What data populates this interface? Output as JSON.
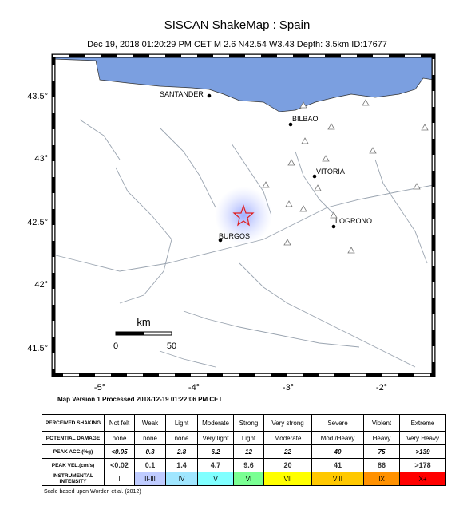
{
  "header": {
    "title": "SISCAN ShakeMap : Spain",
    "subtitle": "Dec 19, 2018 01:20:29 PM CET   M 2.6   N42.54 W3.43   Depth: 3.5km   ID:17677"
  },
  "map": {
    "lat_labels": [
      "43.5°",
      "43°",
      "42.5°",
      "42°",
      "41.5°"
    ],
    "lon_labels": [
      "-5°",
      "-4°",
      "-3°",
      "-2°"
    ],
    "cities": [
      "SANTANDER",
      "BILBAO",
      "VITORIA",
      "LOGRONO",
      "BURGOS"
    ],
    "scale": {
      "unit": "km",
      "start": "0",
      "end": "50"
    }
  },
  "processed": "Map Version 1 Processed 2018-12-19 01:22:06 PM CET",
  "table": {
    "rows": [
      [
        "PERCEIVED SHAKING",
        "Not felt",
        "Weak",
        "Light",
        "Moderate",
        "Strong",
        "Very strong",
        "Severe",
        "Violent",
        "Extreme"
      ],
      [
        "POTENTIAL DAMAGE",
        "none",
        "none",
        "none",
        "Very light",
        "Light",
        "Moderate",
        "Mod./Heavy",
        "Heavy",
        "Very Heavy"
      ],
      [
        "PEAK ACC.(%g)",
        "<0.05",
        "0.3",
        "2.8",
        "6.2",
        "12",
        "22",
        "40",
        "75",
        ">139"
      ],
      [
        "PEAK VEL.(cm/s)",
        "<0.02",
        "0.1",
        "1.4",
        "4.7",
        "9.6",
        "20",
        "41",
        "86",
        ">178"
      ],
      [
        "INSTRUMENTAL INTENSITY",
        "I",
        "II-III",
        "IV",
        "V",
        "VI",
        "VII",
        "VIII",
        "IX",
        "X+"
      ]
    ],
    "intensity_colors": [
      "#ffffff",
      "#bfccff",
      "#a0e6ff",
      "#80ffff",
      "#7aff93",
      "#ffff00",
      "#ffc800",
      "#ff9100",
      "#ff0000"
    ]
  },
  "footnote": "Scale based upon Worden et al. (2012)"
}
